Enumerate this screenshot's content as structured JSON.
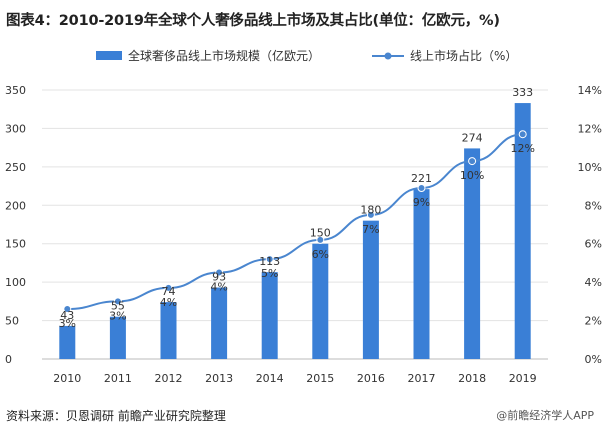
{
  "title": "图表4：2010-2019年全球个人奢侈品线上市场及其占比(单位：亿欧元，%)",
  "source": "资料来源：贝恩调研 前瞻产业研究院整理",
  "watermark_text": "@前瞻经济学人APP",
  "colors": {
    "bar": "#3a7fd6",
    "line": "#4a86cf",
    "grid": "#e3e3e3"
  },
  "chart_data": {
    "type": "bar",
    "categories": [
      "2010",
      "2011",
      "2012",
      "2013",
      "2014",
      "2015",
      "2016",
      "2017",
      "2018",
      "2019"
    ],
    "series": [
      {
        "name": "全球奢侈品线上市场规模（亿欧元）",
        "type": "bar",
        "axis": "left",
        "values": [
          43,
          55,
          74,
          93,
          113,
          150,
          180,
          221,
          274,
          333
        ],
        "labels": [
          "43",
          "55",
          "74",
          "93",
          "113",
          "150",
          "180",
          "221",
          "274",
          "333"
        ]
      },
      {
        "name": "线上市场占比（%）",
        "type": "line",
        "axis": "right",
        "values": [
          2.6,
          3.0,
          3.7,
          4.5,
          5.2,
          6.2,
          7.5,
          8.9,
          10.3,
          11.7
        ],
        "labels": [
          "3%",
          "3%",
          "4%",
          "4%",
          "5%",
          "6%",
          "7%",
          "9%",
          "10%",
          "12%"
        ]
      }
    ],
    "ylim_left": [
      0,
      350
    ],
    "yticks_left": [
      "0",
      "50",
      "100",
      "150",
      "200",
      "250",
      "300",
      "350"
    ],
    "ylim_right": [
      0,
      14
    ],
    "yticks_right": [
      "0%",
      "2%",
      "4%",
      "6%",
      "8%",
      "10%",
      "12%",
      "14%"
    ],
    "legend_position": "top",
    "grid": true
  }
}
